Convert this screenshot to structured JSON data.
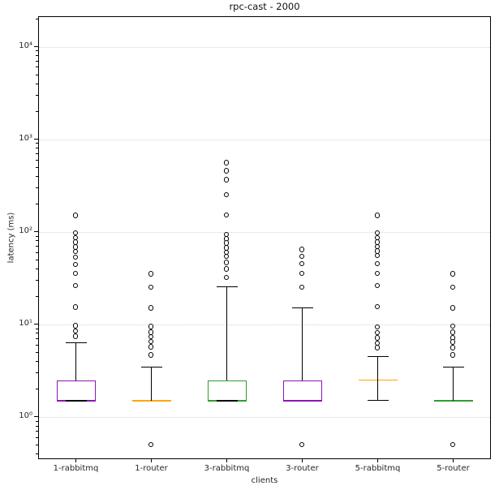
{
  "chart_data": {
    "type": "boxplot",
    "title": "rpc-cast - 2000",
    "xlabel": "clients",
    "ylabel": "latency (ms)",
    "yscale": "log",
    "ylim": [
      0.35,
      21400
    ],
    "ytick_values": [
      1,
      10,
      100,
      1000,
      10000
    ],
    "ytick_labels": [
      "10⁰",
      "10¹",
      "10²",
      "10³",
      "10⁴"
    ],
    "grid": "major-y-dotted",
    "legend": "none",
    "categories": [
      "1-rabbitmq",
      "1-router",
      "3-rabbitmq",
      "3-router",
      "5-rabbitmq",
      "5-router"
    ],
    "colors": {
      "spine": "#000000",
      "whisker": "#000000",
      "flier_edge": "#000000",
      "grid": "#d4d4d4"
    },
    "boxes": [
      {
        "label": "1-rabbitmq",
        "color": "#8e14b5",
        "q1": 1.5,
        "median": 1.5,
        "q3": 2.5,
        "whisker_high": 6.3,
        "whisker_low": null,
        "cap_at_q1": true,
        "fliers": [
          150,
          97,
          86,
          77,
          68,
          61,
          53,
          44,
          35.5,
          26,
          15.3,
          9.6,
          8.4,
          7.4
        ]
      },
      {
        "label": "1-router",
        "color": "#ffa500",
        "q1": 1.5,
        "median": 1.5,
        "q3": 1.5,
        "whisker_high": 3.45,
        "whisker_low": null,
        "cap_at_q1": false,
        "fliers": [
          35,
          25,
          15,
          9.4,
          8.2,
          7.3,
          6.5,
          5.7,
          4.65,
          0.5
        ]
      },
      {
        "label": "3-rabbitmq",
        "color": "#2e9e2e",
        "q1": 1.5,
        "median": 1.5,
        "q3": 2.5,
        "whisker_high": 25.5,
        "whisker_low": null,
        "cap_at_q1": true,
        "fliers": [
          555,
          453,
          363,
          250,
          151,
          93,
          83,
          75,
          67,
          60,
          54,
          46.5,
          39.5,
          32
        ]
      },
      {
        "label": "3-router",
        "color": "#8e14b5",
        "q1": 1.5,
        "median": 1.5,
        "q3": 2.5,
        "whisker_high": 15,
        "whisker_low": null,
        "cap_at_q1": false,
        "fliers": [
          64,
          54,
          45,
          35.5,
          25,
          0.5
        ]
      },
      {
        "label": "5-rabbitmq",
        "color": "#ffa500",
        "q1": 2.5,
        "median": 2.5,
        "q3": 2.5,
        "whisker_high": 4.5,
        "whisker_low": 1.5,
        "cap_at_q1": false,
        "fliers": [
          150,
          97,
          86,
          77,
          69,
          61.5,
          55,
          45,
          35.5,
          26,
          15.4,
          9.3,
          8.1,
          7.1,
          6.2,
          5.6
        ]
      },
      {
        "label": "5-router",
        "color": "#2e9e2e",
        "q1": 1.5,
        "median": 1.5,
        "q3": 1.5,
        "whisker_high": 3.45,
        "whisker_low": null,
        "cap_at_q1": false,
        "fliers": [
          35,
          25,
          15,
          9.5,
          8.2,
          7.1,
          6.4,
          5.6,
          4.65,
          0.5
        ]
      }
    ]
  }
}
